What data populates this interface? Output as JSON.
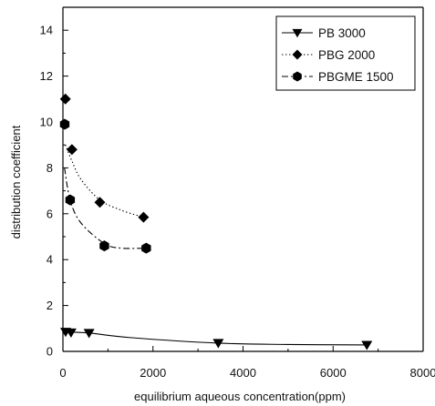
{
  "chart_data": {
    "type": "scatter",
    "xlabel": "equilibrium aqueous concentration(ppm)",
    "ylabel": "distribution coefficient",
    "xlim": [
      0,
      8000
    ],
    "ylim": [
      0,
      15
    ],
    "xticks": [
      0,
      2000,
      4000,
      6000,
      8000
    ],
    "yticks": [
      0,
      2,
      4,
      6,
      8,
      10,
      12,
      14
    ],
    "grid": false,
    "legend_position": "top-right",
    "series": [
      {
        "name": "PB 3000",
        "marker": "triangle-down",
        "line_style": "solid",
        "color": "#000000",
        "points": [
          [
            60,
            0.85
          ],
          [
            180,
            0.82
          ],
          [
            580,
            0.8
          ],
          [
            3450,
            0.36
          ],
          [
            6750,
            0.28
          ]
        ],
        "curve": [
          [
            0,
            0.85
          ],
          [
            580,
            0.8
          ],
          [
            1500,
            0.6
          ],
          [
            3450,
            0.36
          ],
          [
            5000,
            0.3
          ],
          [
            6750,
            0.28
          ]
        ]
      },
      {
        "name": "PBG 2000",
        "marker": "diamond",
        "line_style": "dotted",
        "color": "#000000",
        "points": [
          [
            55,
            11.0
          ],
          [
            200,
            8.8
          ],
          [
            820,
            6.5
          ],
          [
            1790,
            5.85
          ]
        ],
        "curve": [
          [
            55,
            9.0
          ],
          [
            200,
            8.3
          ],
          [
            400,
            7.5
          ],
          [
            820,
            6.6
          ],
          [
            1300,
            6.15
          ],
          [
            1790,
            5.85
          ]
        ]
      },
      {
        "name": "PBGME 1500",
        "marker": "hexagon",
        "line_style": "dash-dot",
        "color": "#000000",
        "points": [
          [
            40,
            9.9
          ],
          [
            160,
            6.6
          ],
          [
            920,
            4.6
          ],
          [
            1850,
            4.5
          ]
        ],
        "curve": [
          [
            35,
            8.0
          ],
          [
            160,
            6.6
          ],
          [
            400,
            5.6
          ],
          [
            920,
            4.7
          ],
          [
            1300,
            4.5
          ],
          [
            1850,
            4.5
          ]
        ]
      }
    ]
  }
}
